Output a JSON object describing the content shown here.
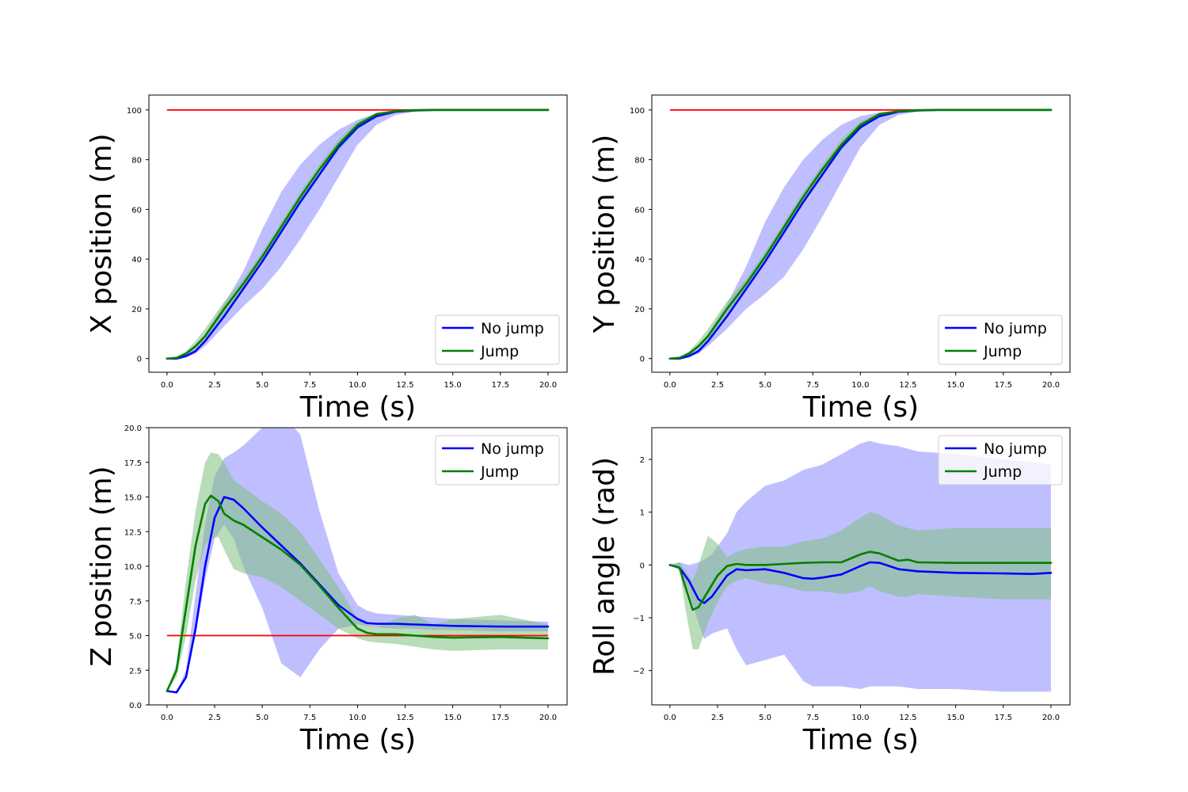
{
  "colors": {
    "no_jump": "#0000ff",
    "jump": "#008000",
    "no_jump_band": "#8080ff",
    "jump_band": "#80c080",
    "target": "#ff0000"
  },
  "chart_data": [
    {
      "type": "line",
      "id": "x",
      "xlabel": "Time (s)",
      "ylabel": "X position (m)",
      "xlim": [
        -0.95,
        21.0
      ],
      "ylim": [
        -5.5,
        106.0
      ],
      "xticks": [
        0,
        2.5,
        5,
        7.5,
        10,
        12.5,
        15,
        17.5,
        20
      ],
      "xtick_labels": [
        "0.0",
        "2.5",
        "5.0",
        "7.5",
        "10.0",
        "12.5",
        "15.0",
        "17.5",
        "20.0"
      ],
      "yticks": [
        0,
        20,
        40,
        60,
        80,
        100
      ],
      "ytick_labels": [
        "0",
        "20",
        "40",
        "60",
        "80",
        "100"
      ],
      "legend": {
        "position": "lower-right",
        "entries": [
          "No jump",
          "Jump"
        ]
      },
      "target": 100,
      "series": [
        {
          "name": "No jump",
          "x": [
            0,
            0.5,
            1,
            1.5,
            2,
            3,
            4,
            5,
            6,
            7,
            8,
            9,
            10,
            11,
            12,
            13,
            14,
            15,
            17.5,
            20
          ],
          "y": [
            0,
            0,
            1,
            3,
            7,
            17,
            28,
            39,
            51,
            63,
            74,
            85,
            93,
            97.5,
            99.3,
            99.8,
            100,
            100,
            100,
            100
          ],
          "lower": [
            0,
            0,
            0.5,
            2,
            5,
            13,
            21,
            28,
            37,
            48,
            60,
            73,
            86,
            94,
            98,
            99.3,
            99.6,
            99.7,
            99.8,
            99.8
          ],
          "upper": [
            0,
            0.5,
            2,
            5,
            10,
            22,
            35,
            52,
            67,
            78,
            86,
            92,
            96,
            98.5,
            99.5,
            100,
            100.5,
            100.5,
            100.5,
            100.5
          ]
        },
        {
          "name": "Jump",
          "x": [
            0,
            0.5,
            1,
            1.5,
            2,
            3,
            4,
            5,
            6,
            7,
            8,
            9,
            10,
            11,
            12,
            13,
            14,
            15,
            17.5,
            20
          ],
          "y": [
            0,
            0.3,
            2,
            5,
            9,
            20,
            30,
            41,
            53,
            65,
            76,
            86,
            94,
            98.3,
            99.5,
            99.9,
            100,
            100,
            100,
            100
          ],
          "lower": [
            0,
            0.2,
            1.3,
            4,
            7.5,
            17.5,
            28,
            38.5,
            50,
            62,
            73,
            83.5,
            92,
            97.5,
            99.2,
            99.7,
            99.8,
            99.8,
            99.8,
            99.8
          ],
          "upper": [
            0,
            0.5,
            3,
            7,
            12,
            23,
            32,
            43,
            55,
            67,
            78,
            88,
            95.5,
            99,
            99.8,
            100.2,
            100.3,
            100.3,
            100.3,
            100.3
          ]
        }
      ]
    },
    {
      "type": "line",
      "id": "y",
      "xlabel": "Time (s)",
      "ylabel": "Y position (m)",
      "xlim": [
        -0.95,
        21.0
      ],
      "ylim": [
        -5.5,
        106.0
      ],
      "xticks": [
        0,
        2.5,
        5,
        7.5,
        10,
        12.5,
        15,
        17.5,
        20
      ],
      "xtick_labels": [
        "0.0",
        "2.5",
        "5.0",
        "7.5",
        "10.0",
        "12.5",
        "15.0",
        "17.5",
        "20.0"
      ],
      "yticks": [
        0,
        20,
        40,
        60,
        80,
        100
      ],
      "ytick_labels": [
        "0",
        "20",
        "40",
        "60",
        "80",
        "100"
      ],
      "legend": {
        "position": "lower-right",
        "entries": [
          "No jump",
          "Jump"
        ]
      },
      "target": 100,
      "series": [
        {
          "name": "No jump",
          "x": [
            0,
            0.5,
            1,
            1.5,
            2,
            3,
            4,
            5,
            6,
            7,
            8,
            9,
            10,
            11,
            12,
            13,
            14,
            15,
            17.5,
            20
          ],
          "y": [
            0,
            0,
            1,
            3,
            7,
            17,
            28,
            39,
            51,
            63,
            74,
            85,
            93,
            97.5,
            99.3,
            99.8,
            100,
            100,
            100,
            100
          ],
          "lower": [
            0,
            0,
            0.5,
            2,
            5,
            12,
            20,
            26,
            33,
            44,
            57,
            71,
            85,
            94,
            98,
            99.3,
            99.6,
            99.7,
            99.8,
            99.8
          ],
          "upper": [
            0,
            0.5,
            2,
            5,
            10,
            22,
            37,
            55,
            69,
            80,
            88,
            94,
            97.5,
            99,
            99.7,
            100,
            100.5,
            100.5,
            100.5,
            100.5
          ]
        },
        {
          "name": "Jump",
          "x": [
            0,
            0.5,
            1,
            1.5,
            2,
            3,
            4,
            5,
            6,
            7,
            8,
            9,
            10,
            11,
            12,
            13,
            14,
            15,
            17.5,
            20
          ],
          "y": [
            0,
            0.3,
            2,
            5,
            9,
            20,
            30,
            41,
            53,
            65,
            76,
            86,
            94,
            98.3,
            99.5,
            99.9,
            100,
            100,
            100,
            100
          ],
          "lower": [
            0,
            0.2,
            1.3,
            4,
            7.5,
            17.5,
            28,
            38.5,
            50,
            62,
            73,
            83.5,
            92,
            97.5,
            99.2,
            99.7,
            99.8,
            99.8,
            99.8,
            99.8
          ],
          "upper": [
            0,
            0.5,
            3,
            7,
            12,
            23,
            32,
            43,
            55,
            67,
            78,
            88,
            95.5,
            99,
            99.8,
            100.2,
            100.3,
            100.3,
            100.3,
            100.3
          ]
        }
      ]
    },
    {
      "type": "line",
      "id": "z",
      "xlabel": "Time (s)",
      "ylabel": "Z position (m)",
      "xlim": [
        -0.95,
        21.0
      ],
      "ylim": [
        0,
        20
      ],
      "xticks": [
        0,
        2.5,
        5,
        7.5,
        10,
        12.5,
        15,
        17.5,
        20
      ],
      "xtick_labels": [
        "0.0",
        "2.5",
        "5.0",
        "7.5",
        "10.0",
        "12.5",
        "15.0",
        "17.5",
        "20.0"
      ],
      "yticks": [
        0,
        2.5,
        5,
        7.5,
        10,
        12.5,
        15,
        17.5,
        20
      ],
      "ytick_labels": [
        "0.0",
        "2.5",
        "5.0",
        "7.5",
        "10.0",
        "12.5",
        "15.0",
        "17.5",
        "20.0"
      ],
      "legend": {
        "position": "upper-right",
        "entries": [
          "No jump",
          "Jump"
        ]
      },
      "target": 5,
      "series": [
        {
          "name": "No jump",
          "x": [
            0,
            0.5,
            1,
            1.5,
            2,
            2.5,
            3,
            3.5,
            4,
            5,
            6,
            7,
            8,
            9,
            10,
            10.5,
            11,
            12,
            13,
            14,
            15,
            17.5,
            20
          ],
          "y": [
            1,
            0.9,
            2,
            5.5,
            10,
            13.5,
            15,
            14.8,
            14.2,
            12.8,
            11.5,
            10.2,
            8.7,
            7.2,
            6.2,
            5.9,
            5.85,
            5.85,
            5.8,
            5.75,
            5.7,
            5.65,
            5.65
          ],
          "lower": [
            1,
            0.9,
            2,
            5,
            9,
            12,
            13,
            12,
            10,
            7,
            3,
            2,
            4,
            5.5,
            5.8,
            5.7,
            5.6,
            5.5,
            5.5,
            5.4,
            5.4,
            5.3,
            5.3
          ],
          "upper": [
            1,
            0.9,
            2.5,
            8,
            13,
            16.5,
            17.8,
            18.2,
            18.7,
            20,
            21,
            19.5,
            14,
            9.5,
            7.2,
            6.8,
            6.6,
            6.5,
            6.4,
            6.3,
            6.2,
            6.1,
            6.0
          ]
        },
        {
          "name": "Jump",
          "x": [
            0,
            0.5,
            1,
            1.5,
            2,
            2.3,
            2.7,
            3,
            3.5,
            4,
            5,
            6,
            7,
            8,
            9,
            10,
            10.5,
            11,
            12,
            13,
            14,
            15,
            17.5,
            20
          ],
          "y": [
            1,
            2.5,
            7,
            11.5,
            14.5,
            15.1,
            14.7,
            13.8,
            13.3,
            13,
            12.1,
            11.2,
            10.1,
            8.6,
            7,
            5.5,
            5.2,
            5.1,
            5.1,
            5.0,
            4.9,
            4.85,
            4.9,
            4.8
          ],
          "lower": [
            1,
            2,
            5,
            9,
            11.5,
            12,
            12.1,
            11.2,
            9.8,
            9.5,
            9.2,
            8.5,
            7.5,
            6.5,
            5.5,
            4.8,
            4.6,
            4.5,
            4.4,
            4.2,
            4.0,
            3.9,
            4.0,
            4.0
          ],
          "upper": [
            1,
            3,
            9,
            14,
            17.5,
            18.2,
            18.1,
            17.5,
            16.2,
            15.7,
            14.7,
            13.8,
            12.5,
            10.5,
            8.5,
            6.2,
            5.8,
            5.6,
            6.2,
            6.5,
            5.8,
            6.2,
            6.5,
            5.8
          ]
        }
      ]
    },
    {
      "type": "line",
      "id": "roll",
      "xlabel": "Time (s)",
      "ylabel": "Roll angle (rad)",
      "xlim": [
        -0.95,
        21.0
      ],
      "ylim": [
        -2.65,
        2.6
      ],
      "xticks": [
        0,
        2.5,
        5,
        7.5,
        10,
        12.5,
        15,
        17.5,
        20
      ],
      "xtick_labels": [
        "0.0",
        "2.5",
        "5.0",
        "7.5",
        "10.0",
        "12.5",
        "15.0",
        "17.5",
        "20.0"
      ],
      "yticks": [
        -2,
        -1,
        0,
        1,
        2
      ],
      "ytick_labels": [
        "−2",
        "−1",
        "0",
        "1",
        "2"
      ],
      "legend": {
        "position": "upper-right",
        "entries": [
          "No jump",
          "Jump"
        ]
      },
      "series": [
        {
          "name": "No jump",
          "x": [
            0,
            0.5,
            1,
            1.5,
            1.8,
            2.2,
            3,
            3.5,
            4,
            5,
            6,
            7,
            7.5,
            8,
            9,
            10,
            10.5,
            11,
            12,
            13,
            15,
            17.5,
            19,
            20
          ],
          "y": [
            0,
            -0.05,
            -0.3,
            -0.65,
            -0.72,
            -0.6,
            -0.2,
            -0.08,
            -0.1,
            -0.08,
            -0.15,
            -0.25,
            -0.26,
            -0.24,
            -0.18,
            -0.02,
            0.05,
            0.04,
            -0.08,
            -0.12,
            -0.15,
            -0.16,
            -0.17,
            -0.15
          ],
          "lower": [
            0,
            -0.1,
            -0.5,
            -1.1,
            -1.4,
            -1.3,
            -1.2,
            -1.6,
            -1.9,
            -1.8,
            -1.7,
            -2.2,
            -2.3,
            -2.3,
            -2.3,
            -2.35,
            -2.3,
            -2.3,
            -2.3,
            -2.35,
            -2.35,
            -2.4,
            -2.4,
            -2.4
          ],
          "upper": [
            0,
            0.05,
            0,
            0.05,
            0.1,
            0.2,
            0.6,
            1.0,
            1.2,
            1.5,
            1.6,
            1.8,
            1.85,
            1.9,
            2.1,
            2.3,
            2.35,
            2.3,
            2.25,
            2.15,
            2.1,
            2.0,
            1.95,
            1.9
          ]
        },
        {
          "name": "Jump",
          "x": [
            0,
            0.5,
            0.8,
            1.2,
            1.5,
            2,
            2.5,
            3,
            3.5,
            4,
            5,
            6,
            7,
            8,
            9,
            10,
            10.5,
            11,
            12,
            12.5,
            13,
            15,
            17.5,
            20
          ],
          "y": [
            0,
            -0.05,
            -0.4,
            -0.85,
            -0.8,
            -0.5,
            -0.2,
            -0.02,
            0.02,
            0.0,
            0.0,
            0.02,
            0.04,
            0.05,
            0.05,
            0.2,
            0.25,
            0.22,
            0.08,
            0.1,
            0.05,
            0.04,
            0.04,
            0.04
          ],
          "lower": [
            0,
            -0.05,
            -0.8,
            -1.6,
            -1.6,
            -1.1,
            -0.7,
            -0.4,
            -0.3,
            -0.25,
            -0.35,
            -0.4,
            -0.5,
            -0.5,
            -0.55,
            -0.5,
            -0.4,
            -0.5,
            -0.6,
            -0.6,
            -0.55,
            -0.6,
            -0.65,
            -0.65
          ],
          "upper": [
            0,
            0.05,
            -0.1,
            -0.3,
            0.0,
            0.55,
            0.4,
            0.15,
            0.25,
            0.3,
            0.35,
            0.35,
            0.45,
            0.5,
            0.65,
            0.9,
            1.0,
            0.95,
            0.75,
            0.7,
            0.65,
            0.7,
            0.7,
            0.7
          ]
        }
      ]
    }
  ]
}
